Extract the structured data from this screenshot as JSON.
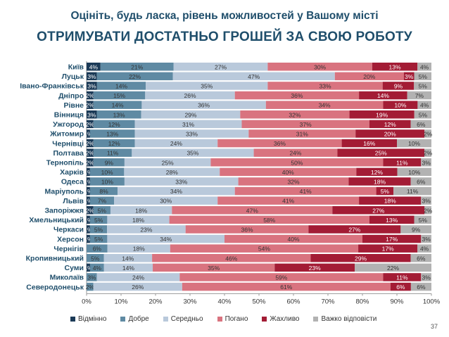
{
  "header": {
    "subtitle": "Оцініть, будь ласка, рівень можливостей у Вашому місті",
    "title": "ОТРИМУВАТИ ДОСТАТНЬО ГРОШЕЙ ЗА СВОЮ РОБОТУ"
  },
  "page_number": "37",
  "chart_data": {
    "type": "bar",
    "orientation": "horizontal-stacked-100",
    "categories": [
      "Київ",
      "Луцьк",
      "Івано-Франківськ",
      "Дніпро",
      "Рівне",
      "Вінниця",
      "Ужгород",
      "Житомир",
      "Чернівці",
      "Полтава",
      "Тернопіль",
      "Харків",
      "Одеса",
      "Маріуполь",
      "Львів",
      "Запоріжжя",
      "Хмельницький",
      "Черкаси",
      "Херсон",
      "Чернігів",
      "Кропивницький",
      "Суми",
      "Миколаїв",
      "Северодонецьк"
    ],
    "series": [
      {
        "name": "Відмінно",
        "color": "#1b3a57",
        "values": [
          4,
          3,
          3,
          2,
          2,
          3,
          2,
          1,
          2,
          2,
          2,
          1,
          1,
          1,
          1,
          2,
          1,
          1,
          1,
          0,
          0,
          1,
          0,
          0
        ]
      },
      {
        "name": "Добре",
        "color": "#5f8aa3",
        "values": [
          21,
          22,
          14,
          15,
          14,
          13,
          12,
          13,
          12,
          11,
          9,
          10,
          10,
          8,
          7,
          5,
          5,
          5,
          5,
          6,
          5,
          4,
          3,
          2
        ]
      },
      {
        "name": "Середньо",
        "color": "#b9c9db",
        "values": [
          27,
          47,
          35,
          26,
          36,
          29,
          31,
          33,
          24,
          35,
          25,
          28,
          33,
          34,
          30,
          18,
          18,
          23,
          34,
          18,
          14,
          14,
          24,
          26
        ]
      },
      {
        "name": "Погано",
        "color": "#d9737f",
        "values": [
          30,
          20,
          33,
          36,
          34,
          32,
          37,
          31,
          36,
          24,
          50,
          40,
          32,
          41,
          41,
          47,
          58,
          36,
          40,
          54,
          46,
          35,
          59,
          61
        ]
      },
      {
        "name": "Жахливо",
        "color": "#a31c35",
        "values": [
          13,
          3,
          9,
          14,
          10,
          19,
          12,
          20,
          16,
          25,
          11,
          12,
          18,
          5,
          18,
          27,
          13,
          27,
          17,
          17,
          29,
          23,
          11,
          6
        ]
      },
      {
        "name": "Важко відповісти",
        "color": "#b2b2b2",
        "values": [
          4,
          5,
          5,
          7,
          4,
          5,
          6,
          2,
          10,
          2,
          3,
          10,
          6,
          11,
          3,
          2,
          5,
          9,
          3,
          4,
          6,
          22,
          3,
          6
        ]
      }
    ],
    "data_labels": [
      [
        "4%",
        "21%",
        "27%",
        "30%",
        "13%",
        "4%"
      ],
      [
        "3%",
        "22%",
        "47%",
        "20%",
        "3%",
        "5%"
      ],
      [
        "3%",
        "14%",
        "35%",
        "33%",
        "9%",
        "5%"
      ],
      [
        "2%",
        "15%",
        "26%",
        "36%",
        "14%",
        "7%"
      ],
      [
        "2%",
        "14%",
        "36%",
        "34%",
        "10%",
        "4%"
      ],
      [
        "3%",
        "13%",
        "29%",
        "32%",
        "19%",
        "5%"
      ],
      [
        "2%",
        "12%",
        "31%",
        "37%",
        "12%",
        "6%"
      ],
      [
        "1%",
        "13%",
        "33%",
        "31%",
        "20%",
        "2%"
      ],
      [
        "2%",
        "12%",
        "24%",
        "36%",
        "16%",
        "10%"
      ],
      [
        "2%",
        "11%",
        "35%",
        "24%",
        "25%",
        "2%"
      ],
      [
        "2%",
        "9%",
        "25%",
        "50%",
        "11%",
        "3%"
      ],
      [
        "1%",
        "10%",
        "28%",
        "40%",
        "12%",
        "10%"
      ],
      [
        "1%",
        "10%",
        "33%",
        "32%",
        "18%",
        "6%"
      ],
      [
        "1%",
        "8%",
        "34%",
        "41%",
        "5%",
        "11%"
      ],
      [
        "1%",
        "7%",
        "30%",
        "41%",
        "18%",
        "3%"
      ],
      [
        "2%",
        "5%",
        "18%",
        "47%",
        "27%",
        "2%"
      ],
      [
        "1%",
        "5%",
        "18%",
        "58%",
        "13%",
        "5%"
      ],
      [
        "1%",
        "5%",
        "23%",
        "36%",
        "27%",
        "9%"
      ],
      [
        "1%",
        "5%",
        "34%",
        "40%",
        "17%",
        "3%"
      ],
      [
        "",
        "6%",
        "18%",
        "54%",
        "17%",
        "4%"
      ],
      [
        "",
        "5%",
        "14%",
        "46%",
        "29%",
        "6%"
      ],
      [
        "1%",
        "4%",
        "14%",
        "35%",
        "23%",
        "22%"
      ],
      [
        "",
        "3%",
        "24%",
        "59%",
        "11%",
        "3%"
      ],
      [
        "",
        "2%",
        "26%",
        "61%",
        "6%",
        "6%"
      ]
    ],
    "x_ticks": [
      "0%",
      "10%",
      "20%",
      "30%",
      "40%",
      "50%",
      "60%",
      "70%",
      "80%",
      "90%",
      "100%"
    ],
    "xlim": [
      0,
      100
    ],
    "legend_position": "bottom"
  }
}
